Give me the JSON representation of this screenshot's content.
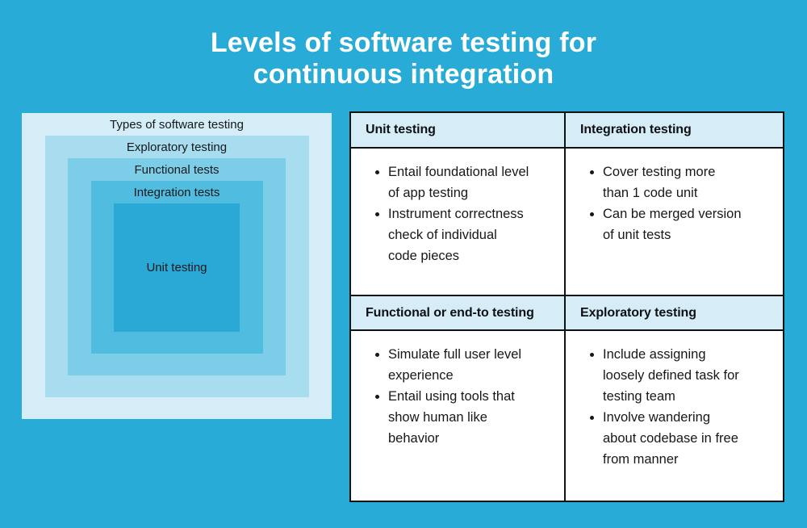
{
  "page": {
    "title": "Levels of software testing for\ncontinuous integration",
    "background_color": "#29abd7",
    "title_color": "#ffffff"
  },
  "pyramid": {
    "levels": [
      {
        "label": "Types of software testing",
        "color": "#d5edf7"
      },
      {
        "label": "Exploratory testing",
        "color": "#a7ddef"
      },
      {
        "label": "Functional tests",
        "color": "#7ccde7"
      },
      {
        "label": "Integration tests",
        "color": "#50bcdf"
      },
      {
        "label": "Unit testing",
        "color": "#2aa9d6"
      }
    ]
  },
  "table": {
    "header_bg": "#d6edf8",
    "border_color": "#101314",
    "body_bg": "#ffffff",
    "cells": [
      {
        "title": "Unit testing",
        "bullets": [
          "Entail foundational level\nof app testing",
          "Instrument correctness\ncheck of individual\ncode pieces"
        ]
      },
      {
        "title": "Integration testing",
        "bullets": [
          "Cover testing more\nthan 1 code unit",
          "Can be merged version\nof unit tests"
        ]
      },
      {
        "title": "Functional or end-to testing",
        "bullets": [
          "Simulate full user level\nexperience",
          "Entail using tools that\nshow human like\nbehavior"
        ]
      },
      {
        "title": "Exploratory testing",
        "bullets": [
          "Include assigning\nloosely defined task for\ntesting team",
          "Involve wandering\nabout codebase in free\nfrom manner"
        ]
      }
    ]
  }
}
